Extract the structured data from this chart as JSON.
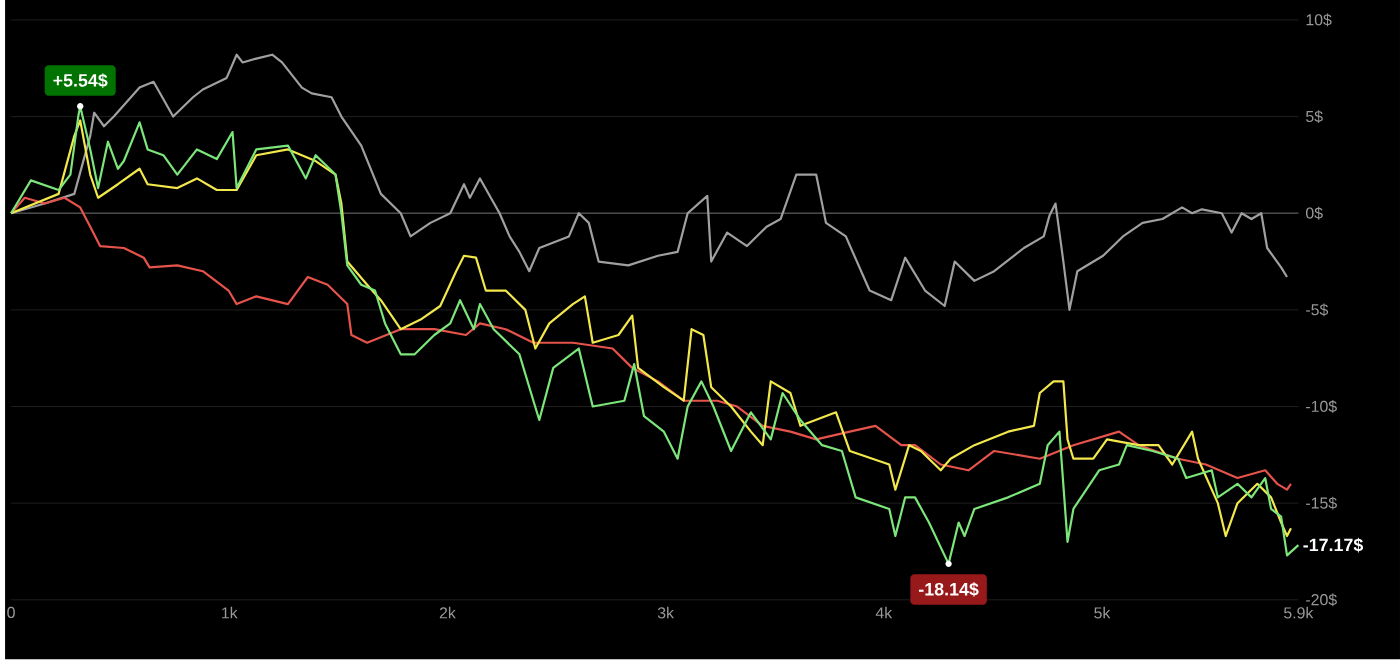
{
  "chart_data": {
    "type": "line",
    "xlim": [
      0,
      5900
    ],
    "ylim": [
      -20,
      10
    ],
    "xticks": [
      0,
      {
        "value": 1000,
        "label": "1k"
      },
      {
        "value": 2000,
        "label": "2k"
      },
      {
        "value": 3000,
        "label": "3k"
      },
      {
        "value": 4000,
        "label": "4k"
      },
      {
        "value": 5000,
        "label": "5k"
      },
      {
        "value": 5900,
        "label": "5.9k"
      }
    ],
    "yticks": [
      {
        "value": 10,
        "label": "10$"
      },
      {
        "value": 5,
        "label": "5$"
      },
      {
        "value": 0,
        "label": "0$"
      },
      {
        "value": -5,
        "label": "-5$"
      },
      {
        "value": -10,
        "label": "-10$"
      },
      {
        "value": -15,
        "label": "-15$"
      },
      {
        "value": -20,
        "label": "-20$"
      }
    ],
    "grid": "y",
    "ref_lines": [
      {
        "axis": "y",
        "value": 0,
        "color": "#4a4a4a"
      }
    ],
    "series": [
      {
        "color": "#a0a0a0",
        "x": [
          0,
          154,
          290,
          363,
          381,
          426,
          471,
          589,
          653,
          743,
          834,
          879,
          988,
          1034,
          1061,
          1124,
          1197,
          1242,
          1333,
          1378,
          1469,
          1514,
          1605,
          1695,
          1786,
          1831,
          1922,
          2013,
          2076,
          2103,
          2149,
          2239,
          2285,
          2330,
          2375,
          2421,
          2557,
          2602,
          2648,
          2693,
          2829,
          2965,
          3055,
          3101,
          3191,
          3209,
          3282,
          3373,
          3463,
          3527,
          3599,
          3690,
          3735,
          3826,
          3935,
          4034,
          4098,
          4189,
          4279,
          4325,
          4415,
          4506,
          4642,
          4733,
          4760,
          4787,
          4823,
          4851,
          4887,
          5005,
          5096,
          5186,
          5277,
          5367,
          5413,
          5458,
          5549,
          5594,
          5640,
          5685,
          5730,
          5757,
          5821,
          5848
        ],
        "values": [
          0,
          0.5,
          1.0,
          4.0,
          5.2,
          4.5,
          5.0,
          6.5,
          6.8,
          5.0,
          6.0,
          6.4,
          7.0,
          8.2,
          7.8,
          8.0,
          8.2,
          7.8,
          6.5,
          6.2,
          6.0,
          5.0,
          3.5,
          1.0,
          0,
          -1.2,
          -0.5,
          0,
          1.5,
          0.8,
          1.8,
          0,
          -1.2,
          -2.0,
          -3.0,
          -1.8,
          -1.2,
          0,
          -0.5,
          -2.5,
          -2.7,
          -2.2,
          -2.0,
          0,
          0.9,
          -2.5,
          -1.0,
          -1.7,
          -0.7,
          -0.3,
          2.0,
          2.0,
          -0.5,
          -1.2,
          -4.0,
          -4.5,
          -2.3,
          -4.0,
          -4.8,
          -2.5,
          -3.5,
          -3.0,
          -1.8,
          -1.2,
          -0.1,
          0.5,
          -2.5,
          -5.0,
          -3.0,
          -2.2,
          -1.2,
          -0.5,
          -0.3,
          0.3,
          0,
          0.2,
          0,
          -1.0,
          0,
          -0.3,
          0,
          -1.8,
          -2.8,
          -3.3
        ]
      },
      {
        "color": "#e5534b",
        "x": [
          0,
          63,
          154,
          245,
          317,
          363,
          408,
          517,
          608,
          635,
          762,
          879,
          997,
          1034,
          1124,
          1269,
          1360,
          1451,
          1541,
          1560,
          1632,
          1786,
          1940,
          2085,
          2149,
          2267,
          2394,
          2575,
          2757,
          2847,
          2965,
          3083,
          3237,
          3328,
          3445,
          3572,
          3690,
          3844,
          3962,
          4080,
          4143,
          4261,
          4388,
          4506,
          4715,
          4869,
          5078,
          5168,
          5349,
          5476,
          5621,
          5748,
          5803,
          5848,
          5866
        ],
        "values": [
          0,
          0.8,
          0.5,
          0.8,
          0.3,
          -0.7,
          -1.7,
          -1.8,
          -2.3,
          -2.8,
          -2.7,
          -3.0,
          -4.0,
          -4.7,
          -4.3,
          -4.7,
          -3.3,
          -3.7,
          -4.7,
          -6.3,
          -6.7,
          -6.0,
          -6.0,
          -6.3,
          -5.7,
          -6.0,
          -6.7,
          -6.7,
          -7.0,
          -8.0,
          -8.7,
          -9.7,
          -9.7,
          -10.0,
          -11.0,
          -11.3,
          -11.7,
          -11.3,
          -11.0,
          -12.0,
          -12.0,
          -13.0,
          -13.3,
          -12.3,
          -12.7,
          -12.0,
          -11.3,
          -12.0,
          -12.7,
          -13.0,
          -13.7,
          -13.3,
          -14.0,
          -14.3,
          -14.0
        ]
      },
      {
        "color": "#f2e84c",
        "x": [
          0,
          218,
          290,
          317,
          363,
          399,
          490,
          589,
          626,
          762,
          852,
          943,
          1034,
          1124,
          1269,
          1396,
          1487,
          1514,
          1541,
          1632,
          1695,
          1786,
          1877,
          1967,
          2040,
          2076,
          2131,
          2176,
          2267,
          2357,
          2403,
          2467,
          2575,
          2630,
          2666,
          2784,
          2847,
          2874,
          2992,
          3083,
          3119,
          3173,
          3209,
          3300,
          3391,
          3445,
          3482,
          3572,
          3618,
          3781,
          3844,
          4025,
          4053,
          4116,
          4170,
          4261,
          4306,
          4415,
          4570,
          4688,
          4715,
          4778,
          4823,
          4842,
          4869,
          4960,
          5023,
          5168,
          5259,
          5322,
          5413,
          5440,
          5531,
          5567,
          5621,
          5712,
          5775,
          5821,
          5848,
          5866
        ],
        "values": [
          0,
          1.0,
          4.0,
          4.8,
          2.0,
          0.8,
          1.5,
          2.3,
          1.5,
          1.3,
          1.8,
          1.2,
          1.2,
          3.0,
          3.3,
          2.7,
          2.0,
          0.5,
          -2.5,
          -3.7,
          -4.5,
          -6.0,
          -5.5,
          -4.8,
          -3.0,
          -2.2,
          -2.3,
          -4.0,
          -4.0,
          -5.0,
          -7.0,
          -5.7,
          -4.7,
          -4.3,
          -6.7,
          -6.3,
          -5.3,
          -8.0,
          -9.0,
          -9.7,
          -6.0,
          -6.3,
          -9.0,
          -10.0,
          -11.3,
          -12.0,
          -8.7,
          -9.3,
          -11.0,
          -10.3,
          -12.3,
          -13.0,
          -14.3,
          -12.0,
          -12.3,
          -13.3,
          -12.7,
          -12.0,
          -11.3,
          -11.0,
          -9.3,
          -8.7,
          -8.7,
          -11.7,
          -12.7,
          -12.7,
          -11.7,
          -12.0,
          -12.0,
          -13.0,
          -11.3,
          -12.7,
          -15.0,
          -16.7,
          -15.0,
          -14.0,
          -14.7,
          -16.0,
          -16.7,
          -16.3
        ]
      },
      {
        "color": "#7ce67a",
        "x": [
          0,
          91,
          218,
          272,
          308,
          317,
          363,
          399,
          444,
          490,
          517,
          589,
          626,
          698,
          762,
          852,
          943,
          1015,
          1034,
          1124,
          1269,
          1351,
          1396,
          1487,
          1514,
          1541,
          1605,
          1668,
          1714,
          1786,
          1850,
          1940,
          2013,
          2058,
          2121,
          2149,
          2212,
          2330,
          2394,
          2421,
          2485,
          2602,
          2666,
          2811,
          2856,
          2901,
          2992,
          3055,
          3101,
          3164,
          3219,
          3300,
          3391,
          3482,
          3536,
          3618,
          3717,
          3808,
          3871,
          4025,
          4053,
          4098,
          4143,
          4207,
          4297,
          4343,
          4370,
          4415,
          4570,
          4715,
          4751,
          4805,
          4842,
          4869,
          4987,
          5078,
          5114,
          5232,
          5349,
          5386,
          5503,
          5531,
          5621,
          5685,
          5748,
          5775,
          5821,
          5848,
          5900
        ],
        "values": [
          0,
          1.7,
          1.2,
          2.0,
          5.0,
          5.54,
          3.3,
          1.3,
          3.7,
          2.3,
          2.7,
          4.7,
          3.3,
          3.0,
          2.0,
          3.3,
          2.8,
          4.2,
          1.3,
          3.3,
          3.5,
          1.8,
          3.0,
          2.0,
          0,
          -2.7,
          -3.7,
          -4.0,
          -5.7,
          -7.3,
          -7.3,
          -6.3,
          -5.7,
          -4.5,
          -6.0,
          -4.7,
          -6.0,
          -7.3,
          -9.7,
          -10.7,
          -8.0,
          -7.0,
          -10.0,
          -9.7,
          -7.8,
          -10.5,
          -11.3,
          -12.7,
          -10.0,
          -8.7,
          -10.0,
          -12.3,
          -10.3,
          -11.7,
          -9.3,
          -10.7,
          -12.0,
          -12.3,
          -14.7,
          -15.3,
          -16.7,
          -14.7,
          -14.7,
          -16.0,
          -18.14,
          -16.0,
          -16.7,
          -15.3,
          -14.7,
          -14.0,
          -12.0,
          -11.3,
          -17.0,
          -15.3,
          -13.3,
          -13.0,
          -12.0,
          -12.3,
          -12.7,
          -13.7,
          -13.3,
          -14.7,
          -14.0,
          -14.7,
          -13.7,
          -15.3,
          -15.7,
          -17.7,
          -17.17
        ]
      }
    ],
    "annotations": [
      {
        "text": "+5.54$",
        "x": 317,
        "y": 5.54
      },
      {
        "text": "-18.14$",
        "x": 4297,
        "y": -18.14
      },
      {
        "text": "-17.17$",
        "x": 5900,
        "y": -17.17
      }
    ]
  }
}
